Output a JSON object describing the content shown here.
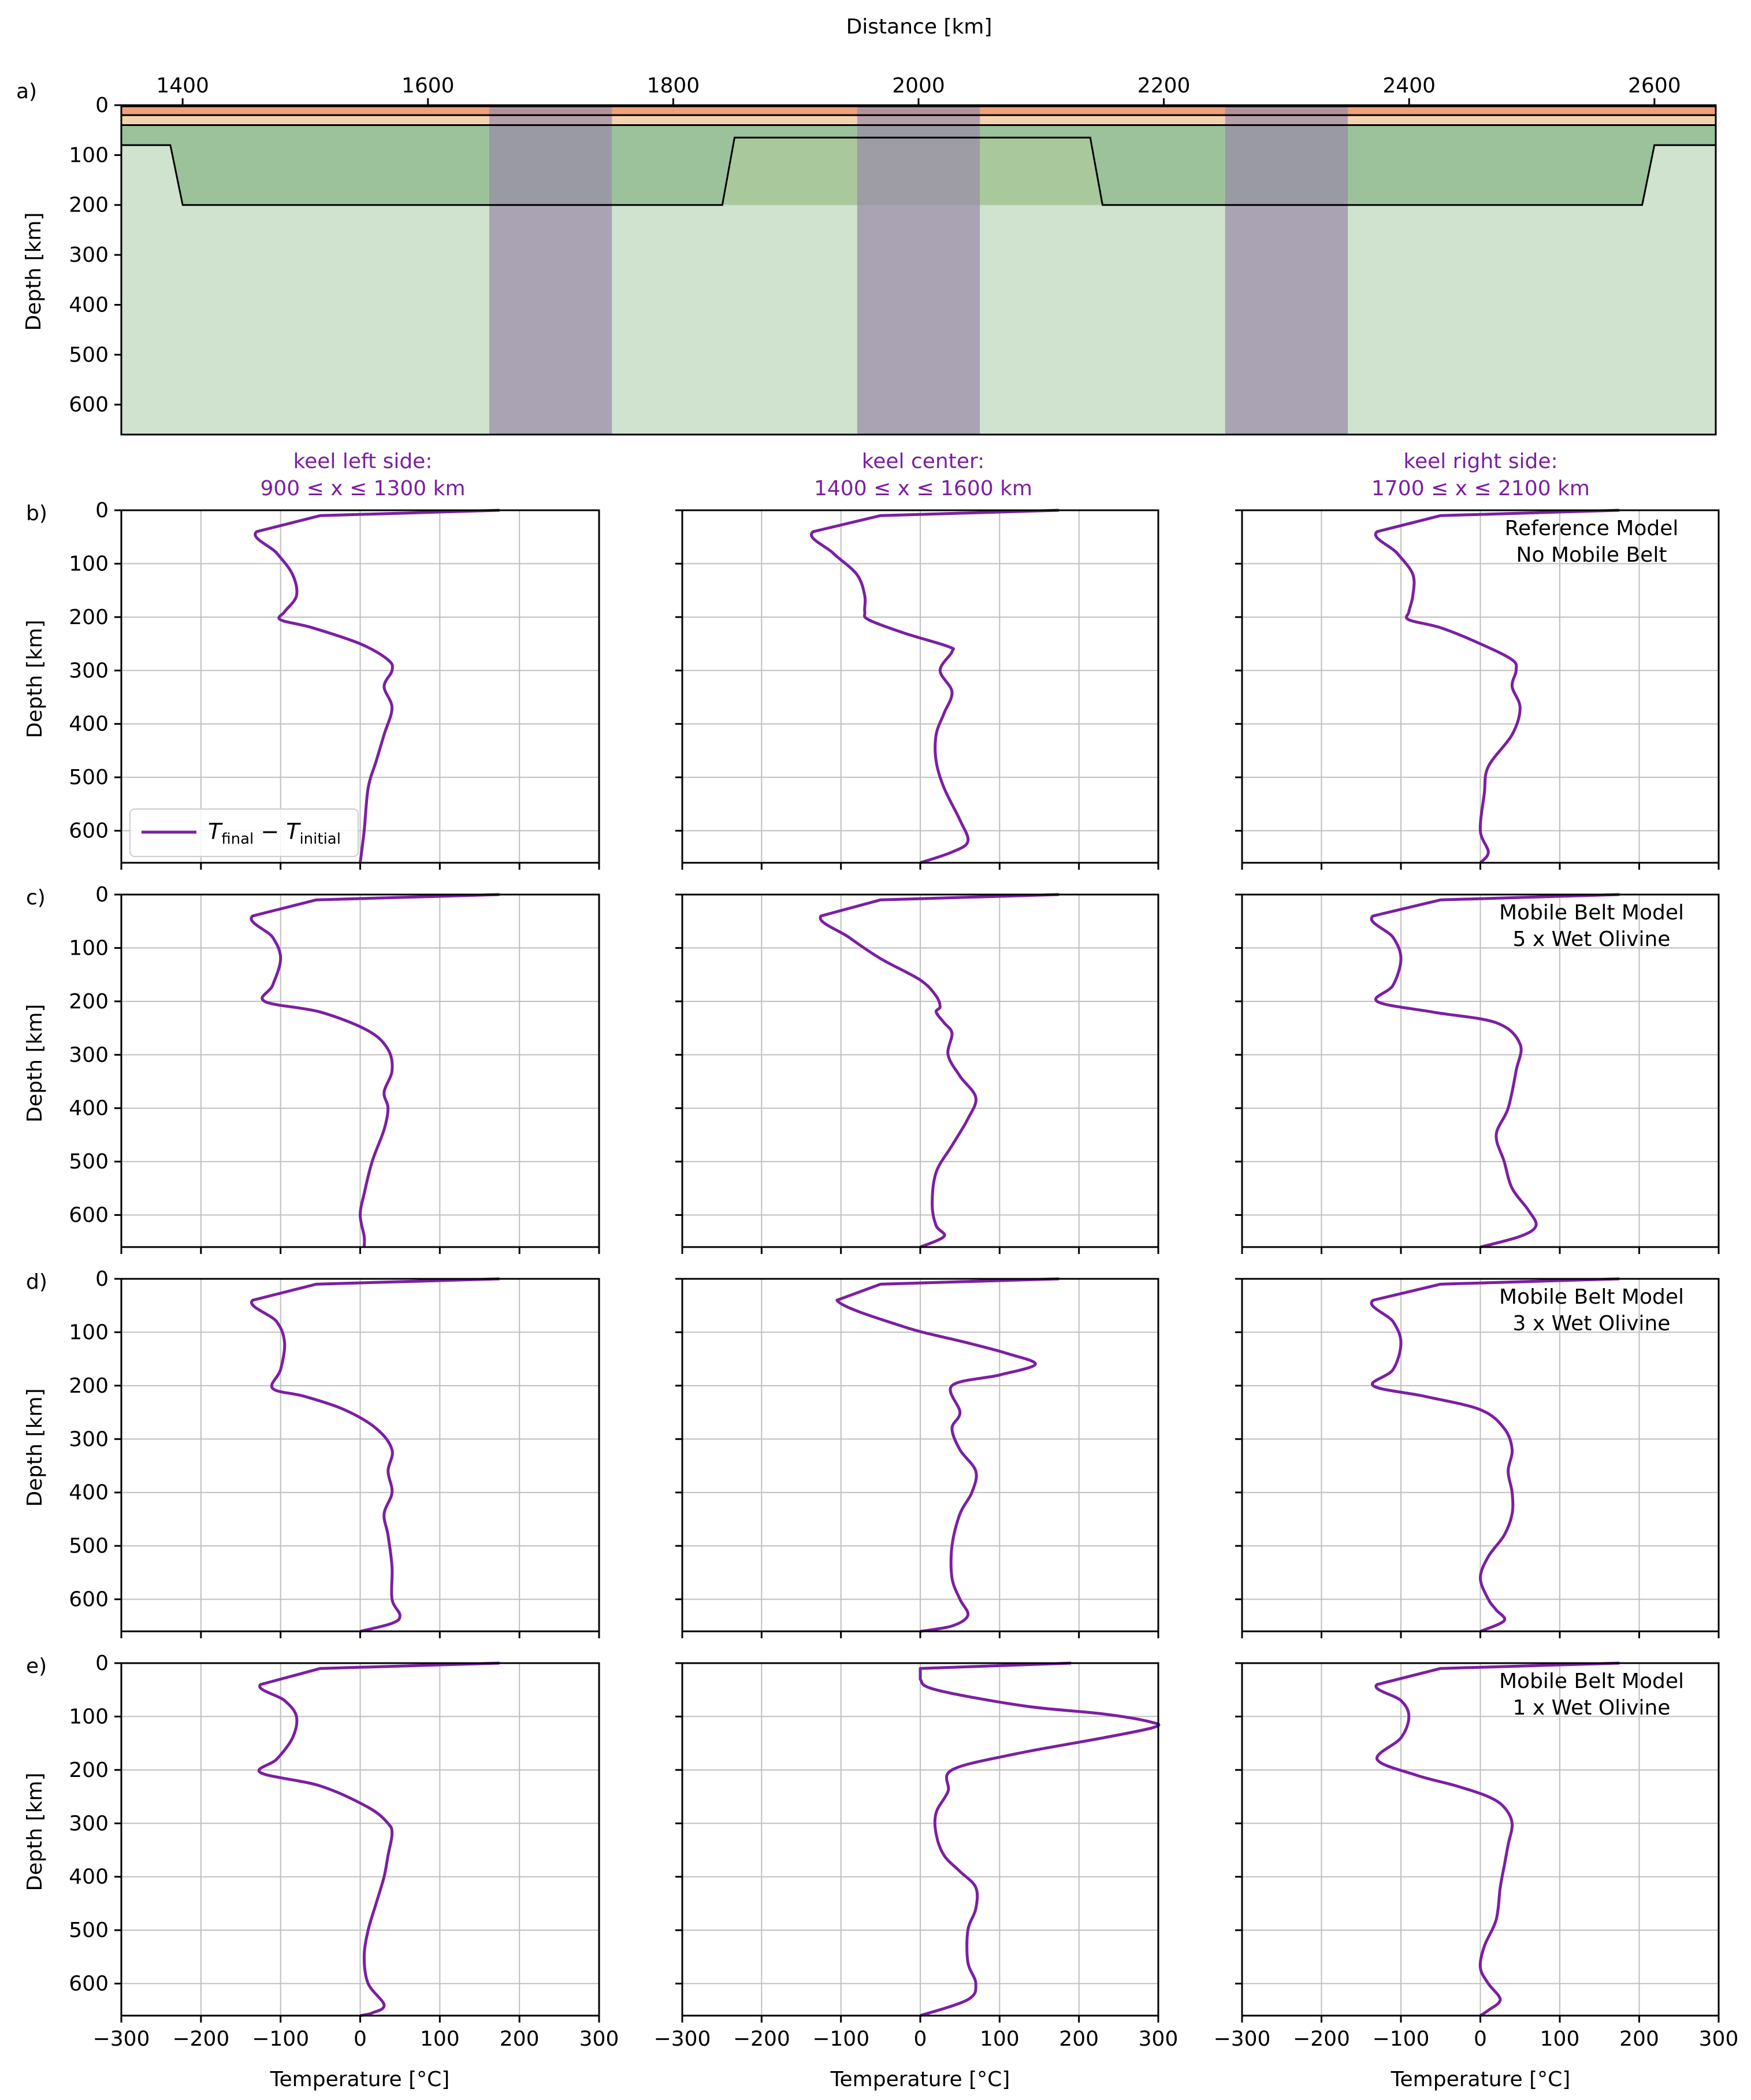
{
  "colors": {
    "upper_crust": "#f0a07a",
    "lower_crust": "#f3d2ad",
    "lithosphere": "#9cc29c",
    "mobile_belt": "#a9c99c",
    "asthenosphere": "#cfe3cf",
    "bands": "#9a8aa8",
    "profile": "#7b1fa2",
    "grid": "#bfbfbf",
    "title_color": "#7b1fa2"
  },
  "panel_a": {
    "label": "a)",
    "xlabel": "Distance [km]",
    "ylabel": "Depth [km]",
    "xticks": [
      "1400",
      "1600",
      "1800",
      "2000",
      "2200",
      "2400",
      "2600"
    ],
    "yticks": [
      "0",
      "100",
      "200",
      "300",
      "400",
      "500",
      "600"
    ]
  },
  "column_titles": [
    {
      "line1": "keel left side:",
      "line2": "900 ≤ x ≤ 1300 km"
    },
    {
      "line1": "keel center:",
      "line2": "1400 ≤ x ≤ 1600 km"
    },
    {
      "line1": "keel right side:",
      "line2": "1700 ≤ x ≤ 2100 km"
    }
  ],
  "rows": [
    {
      "label": "b)",
      "annotation1": "Reference Model",
      "annotation2": "No Mobile Belt"
    },
    {
      "label": "c)",
      "annotation1": "Mobile Belt Model",
      "annotation2": "5 x Wet Olivine"
    },
    {
      "label": "d)",
      "annotation1": "Mobile Belt Model",
      "annotation2": "3 x Wet Olivine"
    },
    {
      "label": "e)",
      "annotation1": "Mobile Belt Model",
      "annotation2": "1 x Wet Olivine"
    }
  ],
  "profile_ylabel": "Depth [km]",
  "profile_xlabel": "Temperature [°C]",
  "profile_xticks": [
    "−300",
    "−200",
    "−100",
    "0",
    "100",
    "200",
    "300"
  ],
  "profile_yticks": [
    "0",
    "100",
    "200",
    "300",
    "400",
    "500",
    "600"
  ],
  "legend": {
    "T": "T",
    "final": "final",
    "minus": " − ",
    "initial": "initial"
  },
  "chart_data": [
    {
      "type": "area",
      "panel": "a",
      "xlabel": "Distance [km]",
      "ylabel": "Depth [km]",
      "xlim": [
        1350,
        2650
      ],
      "ylim": [
        660,
        0
      ],
      "layers": {
        "upper_crust": [
          0,
          20
        ],
        "lower_crust": [
          20,
          40
        ],
        "lithosphere_base_outer_km": 80,
        "keel_base_km": 200,
        "mobile_belt_top_km": 65
      },
      "keel_outline": [
        [
          1350,
          80
        ],
        [
          1390,
          80
        ],
        [
          1400,
          200
        ],
        [
          1840,
          200
        ],
        [
          1850,
          65
        ],
        [
          2140,
          65
        ],
        [
          2150,
          200
        ],
        [
          2590,
          200
        ],
        [
          2600,
          80
        ],
        [
          2650,
          80
        ]
      ],
      "sample_bands": [
        [
          1650,
          1750
        ],
        [
          1950,
          2050
        ],
        [
          2250,
          2350
        ]
      ]
    },
    {
      "type": "line",
      "xlabel": "Temperature [°C]",
      "ylabel": "Depth [km]",
      "xlim": [
        -300,
        300
      ],
      "ylim": [
        660,
        0
      ],
      "legend": "T_final − T_initial",
      "series": [
        {
          "row": "b",
          "column": "keel left side",
          "x": [
            175,
            -50,
            -130,
            -105,
            -85,
            -80,
            -95,
            -100,
            -60,
            0,
            35,
            40,
            30,
            40,
            30,
            20,
            10,
            5,
            0
          ],
          "y": [
            0,
            10,
            40,
            80,
            120,
            160,
            190,
            205,
            220,
            250,
            280,
            300,
            330,
            370,
            420,
            470,
            520,
            600,
            660
          ]
        },
        {
          "row": "b",
          "column": "keel center",
          "x": [
            175,
            -50,
            -135,
            -110,
            -80,
            -70,
            -70,
            -65,
            -20,
            35,
            40,
            25,
            40,
            30,
            20,
            20,
            30,
            50,
            60,
            40,
            0
          ],
          "y": [
            0,
            10,
            40,
            80,
            120,
            160,
            190,
            205,
            230,
            255,
            265,
            300,
            340,
            380,
            420,
            470,
            520,
            580,
            620,
            640,
            660
          ]
        },
        {
          "row": "b",
          "column": "keel right side",
          "x": [
            175,
            -50,
            -130,
            -105,
            -85,
            -85,
            -90,
            -90,
            -50,
            0,
            40,
            45,
            40,
            50,
            40,
            10,
            5,
            0,
            10,
            0
          ],
          "y": [
            0,
            10,
            40,
            80,
            120,
            160,
            190,
            205,
            220,
            250,
            280,
            300,
            330,
            370,
            420,
            480,
            530,
            600,
            640,
            660
          ]
        },
        {
          "row": "c",
          "column": "keel left side",
          "x": [
            175,
            -55,
            -135,
            -110,
            -100,
            -110,
            -120,
            -50,
            10,
            35,
            40,
            30,
            35,
            30,
            15,
            5,
            0,
            5,
            5
          ],
          "y": [
            0,
            10,
            40,
            80,
            120,
            170,
            200,
            220,
            255,
            290,
            330,
            370,
            400,
            440,
            500,
            560,
            600,
            640,
            660
          ]
        },
        {
          "row": "c",
          "column": "keel center",
          "x": [
            175,
            -50,
            -125,
            -90,
            -50,
            0,
            20,
            25,
            20,
            30,
            40,
            35,
            50,
            70,
            60,
            40,
            20,
            15,
            20,
            30,
            0
          ],
          "y": [
            0,
            10,
            40,
            80,
            120,
            160,
            190,
            210,
            220,
            240,
            260,
            300,
            340,
            380,
            420,
            470,
            520,
            580,
            620,
            640,
            660
          ]
        },
        {
          "row": "c",
          "column": "keel right side",
          "x": [
            175,
            -50,
            -135,
            -110,
            -100,
            -110,
            -130,
            -60,
            20,
            50,
            45,
            35,
            20,
            30,
            40,
            60,
            70,
            50,
            0
          ],
          "y": [
            0,
            10,
            40,
            80,
            120,
            170,
            200,
            220,
            240,
            280,
            330,
            400,
            450,
            500,
            550,
            590,
            620,
            640,
            660
          ]
        },
        {
          "row": "c",
          "column": "keel right side",
          "x": [],
          "y": []
        },
        {
          "row": "d",
          "column": "keel left side",
          "x": [
            175,
            -55,
            -135,
            -105,
            -95,
            -100,
            -110,
            -70,
            -20,
            20,
            40,
            35,
            40,
            30,
            35,
            40,
            40,
            50,
            40,
            0
          ],
          "y": [
            0,
            10,
            40,
            80,
            120,
            170,
            205,
            220,
            245,
            280,
            320,
            360,
            400,
            440,
            480,
            540,
            600,
            630,
            645,
            660
          ]
        },
        {
          "row": "d",
          "column": "keel center",
          "x": [
            175,
            -50,
            -105,
            -20,
            60,
            110,
            145,
            100,
            40,
            50,
            40,
            50,
            70,
            65,
            50,
            40,
            40,
            50,
            60,
            40,
            0
          ],
          "y": [
            0,
            10,
            40,
            90,
            120,
            140,
            160,
            180,
            200,
            250,
            280,
            320,
            360,
            400,
            440,
            500,
            560,
            600,
            630,
            650,
            660
          ]
        },
        {
          "row": "d",
          "column": "keel right side",
          "x": [
            175,
            -50,
            -135,
            -110,
            -100,
            -110,
            -135,
            -70,
            0,
            30,
            40,
            35,
            40,
            40,
            30,
            10,
            0,
            10,
            20,
            30,
            0
          ],
          "y": [
            0,
            10,
            40,
            80,
            120,
            170,
            200,
            220,
            245,
            280,
            320,
            360,
            400,
            440,
            480,
            520,
            560,
            600,
            620,
            640,
            660
          ]
        },
        {
          "row": "e",
          "column": "keel left side",
          "x": [
            175,
            -50,
            -125,
            -95,
            -80,
            -85,
            -105,
            -125,
            -50,
            10,
            35,
            40,
            35,
            30,
            20,
            10,
            5,
            10,
            30,
            15,
            0
          ],
          "y": [
            0,
            10,
            40,
            70,
            100,
            140,
            180,
            205,
            230,
            270,
            300,
            320,
            360,
            400,
            450,
            500,
            550,
            600,
            640,
            655,
            660
          ]
        },
        {
          "row": "e",
          "column": "keel center",
          "x": [
            190,
            0,
            0,
            20,
            130,
            230,
            290,
            295,
            230,
            120,
            40,
            35,
            20,
            20,
            30,
            50,
            70,
            70,
            60,
            60,
            70,
            60,
            0
          ],
          "y": [
            0,
            10,
            30,
            50,
            80,
            95,
            110,
            120,
            140,
            170,
            200,
            240,
            280,
            320,
            360,
            390,
            420,
            460,
            500,
            560,
            600,
            630,
            660
          ]
        },
        {
          "row": "e",
          "column": "keel right side",
          "x": [
            175,
            -50,
            -130,
            -100,
            -90,
            -100,
            -130,
            -80,
            -30,
            10,
            30,
            40,
            35,
            30,
            25,
            20,
            5,
            0,
            10,
            25,
            10,
            0
          ],
          "y": [
            0,
            10,
            40,
            70,
            100,
            140,
            180,
            210,
            230,
            250,
            270,
            300,
            340,
            380,
            420,
            480,
            530,
            570,
            600,
            630,
            650,
            660
          ]
        }
      ]
    }
  ]
}
